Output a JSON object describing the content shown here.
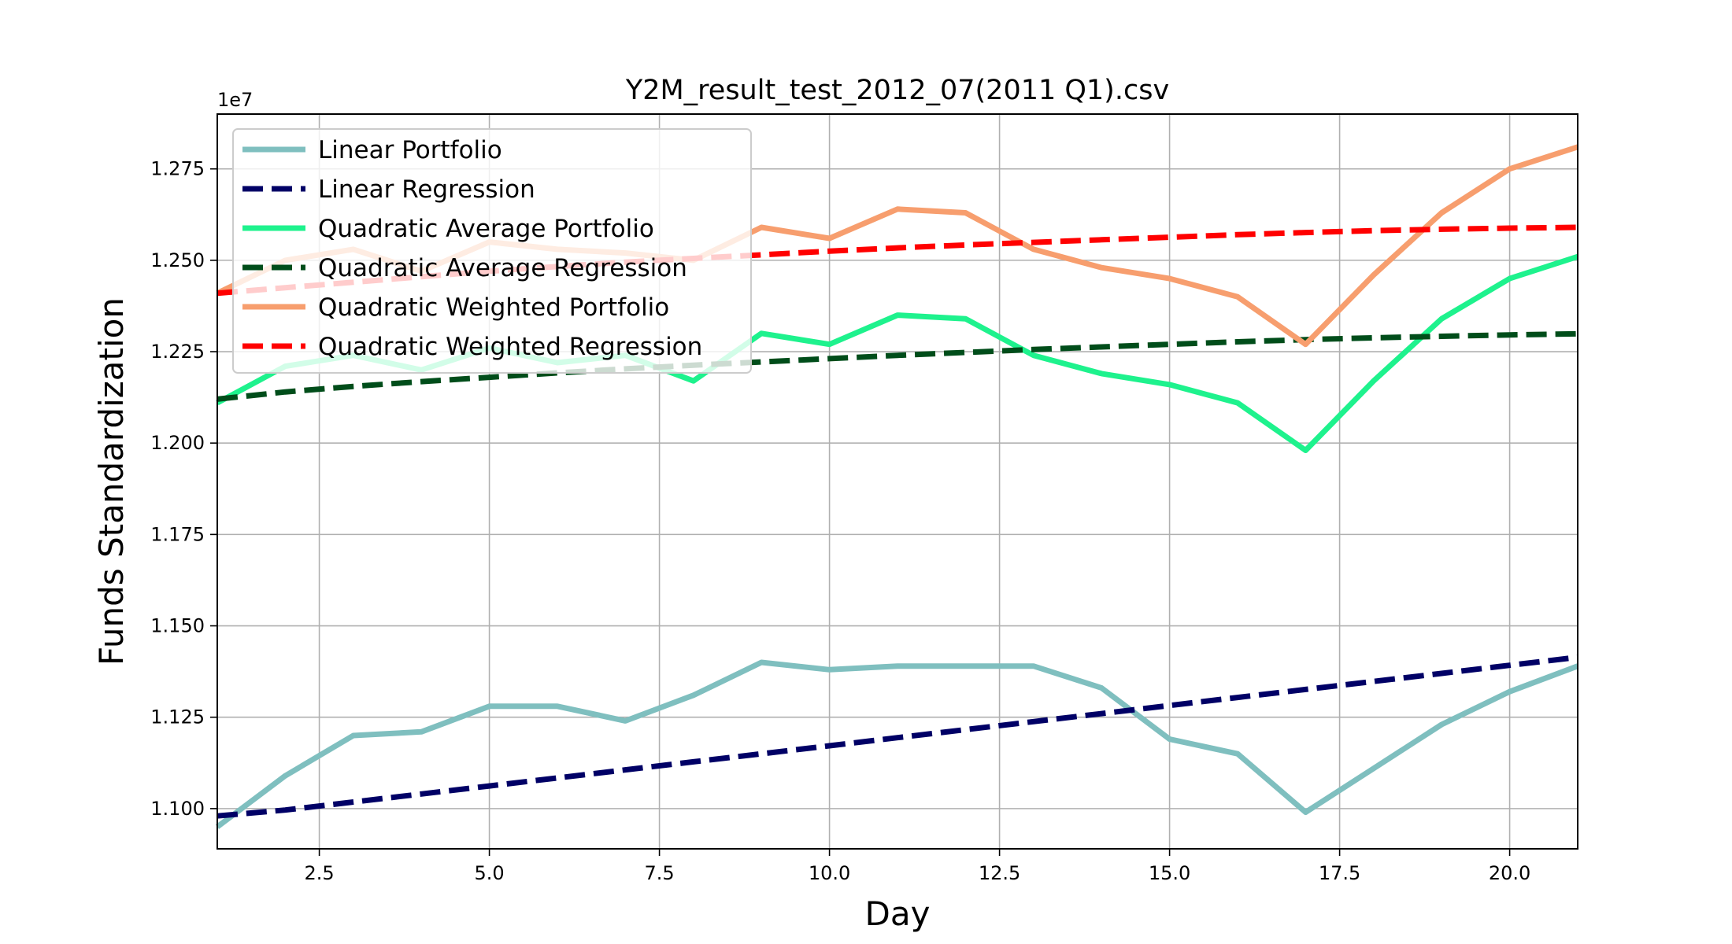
{
  "chart_data": {
    "type": "line",
    "title": "Y2M_result_test_2012_07(2011 Q1).csv",
    "xlabel": "Day",
    "ylabel": "Funds Standardization",
    "y_offset_label": "1e7",
    "xlim": [
      1,
      21
    ],
    "ylim": [
      10.89,
      12.9
    ],
    "x_ticks": [
      2.5,
      5.0,
      7.5,
      10.0,
      12.5,
      15.0,
      17.5,
      20.0
    ],
    "x_tick_labels": [
      "2.5",
      "5.0",
      "7.5",
      "10.0",
      "12.5",
      "15.0",
      "17.5",
      "20.0"
    ],
    "y_ticks": [
      11.0,
      11.25,
      11.5,
      11.75,
      12.0,
      12.25,
      12.5,
      12.75
    ],
    "y_tick_labels": [
      "1.100",
      "1.125",
      "1.150",
      "1.175",
      "1.200",
      "1.225",
      "1.250",
      "1.275"
    ],
    "grid": true,
    "legend_position": "top-left",
    "x": [
      1,
      2,
      3,
      4,
      5,
      6,
      7,
      8,
      9,
      10,
      11,
      12,
      13,
      14,
      15,
      16,
      17,
      18,
      19,
      20,
      21
    ],
    "series": [
      {
        "name": "Linear Portfolio",
        "color": "#7fbfbf",
        "style": "solid",
        "values": [
          10.95,
          11.09,
          11.2,
          11.21,
          11.28,
          11.28,
          11.24,
          11.31,
          11.4,
          11.38,
          11.39,
          11.39,
          11.39,
          11.33,
          11.19,
          11.15,
          10.99,
          11.11,
          11.23,
          11.32,
          11.39
        ]
      },
      {
        "name": "Linear Regression",
        "color": "#000066",
        "style": "dashed",
        "values": [
          10.98,
          10.996,
          11.018,
          11.04,
          11.062,
          11.084,
          11.106,
          11.128,
          11.15,
          11.172,
          11.194,
          11.216,
          11.238,
          11.26,
          11.282,
          11.304,
          11.326,
          11.348,
          11.37,
          11.392,
          11.414
        ]
      },
      {
        "name": "Quadratic Average Portfolio",
        "color": "#1ef28d",
        "style": "solid",
        "values": [
          12.11,
          12.21,
          12.24,
          12.2,
          12.26,
          12.22,
          12.24,
          12.17,
          12.3,
          12.27,
          12.35,
          12.34,
          12.24,
          12.19,
          12.16,
          12.11,
          11.98,
          12.17,
          12.34,
          12.45,
          12.51
        ]
      },
      {
        "name": "Quadratic Average Regression",
        "color": "#004d1a",
        "style": "dashed",
        "values": [
          12.12,
          12.14,
          12.155,
          12.168,
          12.18,
          12.192,
          12.203,
          12.213,
          12.222,
          12.231,
          12.24,
          12.248,
          12.256,
          12.263,
          12.27,
          12.277,
          12.283,
          12.288,
          12.292,
          12.296,
          12.299
        ]
      },
      {
        "name": "Quadratic Weighted Portfolio",
        "color": "#f79e6e",
        "style": "solid",
        "values": [
          12.41,
          12.5,
          12.53,
          12.47,
          12.55,
          12.53,
          12.52,
          12.5,
          12.59,
          12.56,
          12.64,
          12.63,
          12.53,
          12.48,
          12.45,
          12.4,
          12.27,
          12.46,
          12.63,
          12.75,
          12.81
        ]
      },
      {
        "name": "Quadratic Weighted Regression",
        "color": "#ff0000",
        "style": "dashed",
        "values": [
          12.41,
          12.425,
          12.44,
          12.455,
          12.47,
          12.483,
          12.495,
          12.505,
          12.515,
          12.525,
          12.534,
          12.542,
          12.549,
          12.556,
          12.563,
          12.57,
          12.576,
          12.581,
          12.585,
          12.588,
          12.59
        ]
      }
    ]
  }
}
